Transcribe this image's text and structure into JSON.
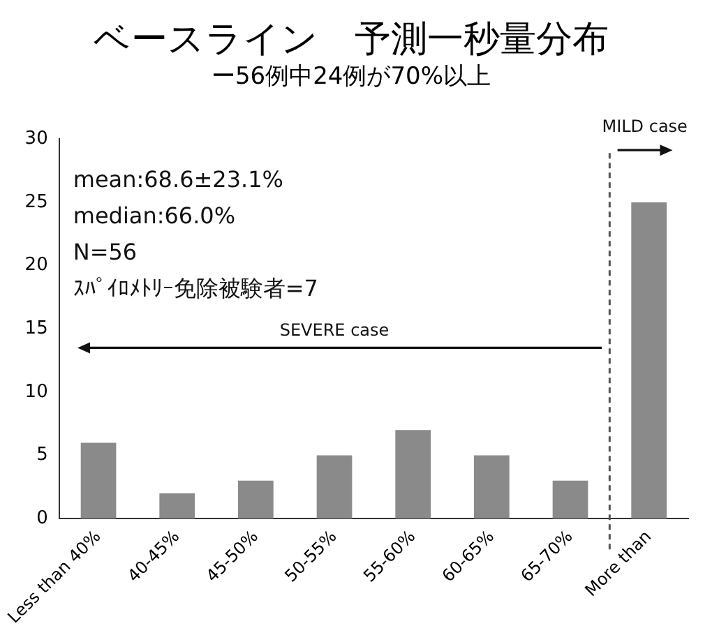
{
  "chart_data": {
    "type": "bar",
    "title": "ベースライン　予測一秒量分布",
    "subtitle": "ー56例中24例が70%以上",
    "categories": [
      "Less than 40%",
      "40-45%",
      "45-50%",
      "50-55%",
      "55-60%",
      "60-65%",
      "65-70%",
      "More than"
    ],
    "values": [
      6,
      2,
      3,
      5,
      7,
      5,
      3,
      25
    ],
    "color": "#8a8a8a",
    "ylim": [
      0,
      30
    ],
    "yticks": [
      0,
      5,
      10,
      15,
      20,
      25,
      30
    ],
    "grid": false,
    "legend": false,
    "annotations": [
      "mean:68.6±23.1%",
      "median:66.0%",
      "N=56",
      "ｽﾊﾟｲﾛﾒﾄﾘｰ免除被験者=7",
      "SEVERE case",
      "MILD case"
    ]
  }
}
